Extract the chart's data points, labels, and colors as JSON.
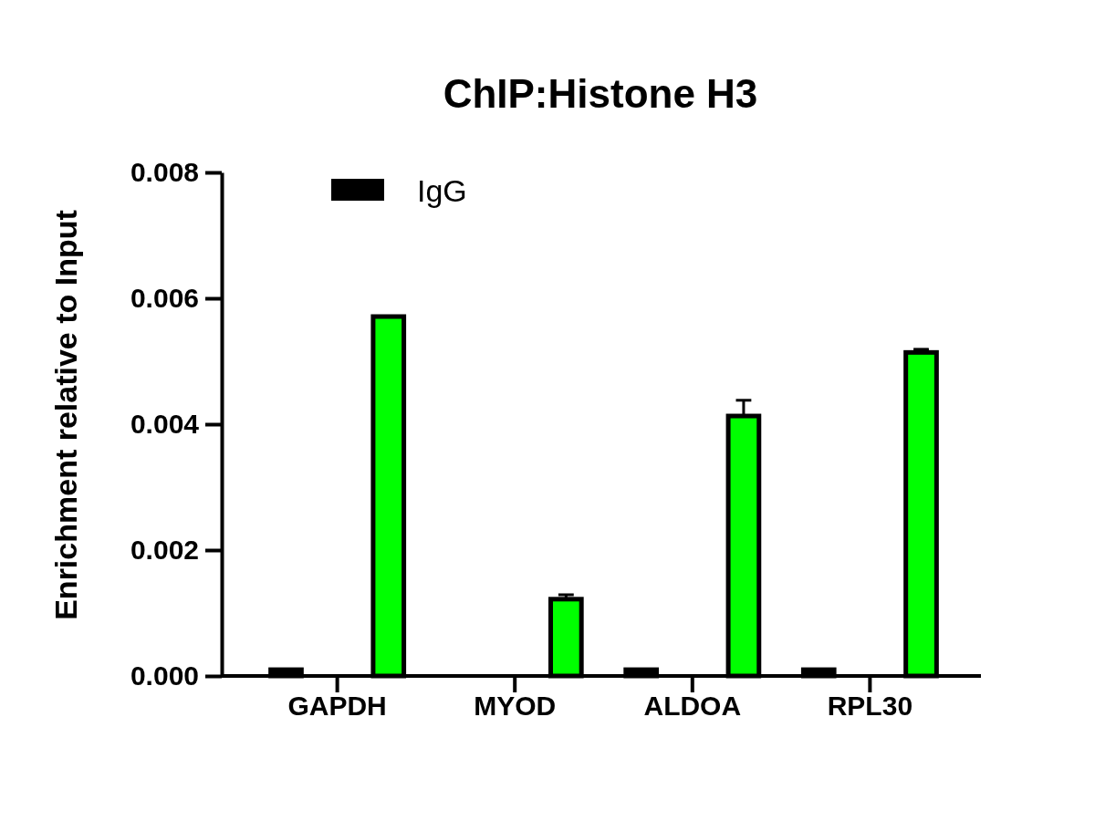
{
  "chart_data": {
    "type": "bar",
    "title": "ChIP:Histone H3",
    "ylabel": "Enrichment relative to Input",
    "categories": [
      "GAPDH",
      "MYOD",
      "ALDOA",
      "RPL30"
    ],
    "series": [
      {
        "name": "IgG",
        "color": "#000000",
        "values": [
          0.0001,
          0,
          0.0001,
          0.0001
        ]
      },
      {
        "color": "#00ff00",
        "values": [
          0.00571,
          0.00122,
          0.00413,
          0.00514
        ],
        "errors": [
          null,
          [
            0.00122,
            0.00129
          ],
          [
            0.00413,
            0.00438
          ],
          [
            0.00514,
            0.00519
          ]
        ]
      }
    ],
    "ylim": [
      0,
      0.008
    ],
    "yticks": [
      {
        "value": 0,
        "label": "0.000"
      },
      {
        "value": 0.002,
        "label": "0.002"
      },
      {
        "value": 0.004,
        "label": "0.004"
      },
      {
        "value": 0.006,
        "label": "0.006"
      },
      {
        "value": 0.008,
        "label": "0.008"
      }
    ],
    "legend": "top",
    "grid": false
  }
}
